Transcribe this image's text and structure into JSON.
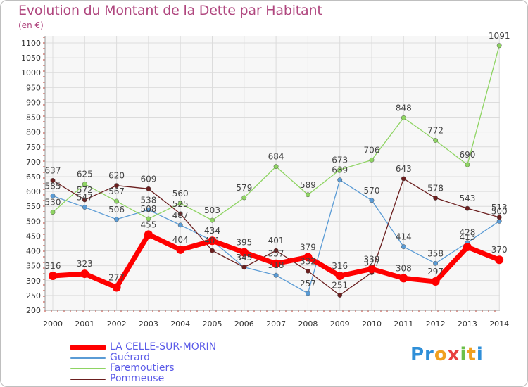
{
  "title": "Evolution du Montant de la Dette par Habitant",
  "subtitle": "(en €)",
  "logo_text": "Proxiti",
  "chart_data": {
    "type": "line",
    "title": "Evolution du Montant de la Dette par Habitant",
    "subtitle": "(en €)",
    "xlabel": "",
    "ylabel": "",
    "categories": [
      "2000",
      "2001",
      "2002",
      "2003",
      "2004",
      "2005",
      "2006",
      "2007",
      "2008",
      "2009",
      "2010",
      "2011",
      "2012",
      "2013",
      "2014"
    ],
    "ylim": [
      200,
      1100
    ],
    "yticks": [
      200,
      250,
      300,
      350,
      400,
      450,
      500,
      550,
      600,
      650,
      700,
      750,
      800,
      850,
      900,
      950,
      1000,
      1050,
      1100
    ],
    "grid": true,
    "legend_position": "bottom-left",
    "series": [
      {
        "name": "LA CELLE-SUR-MORIN",
        "color": "#ff0000",
        "values": [
          316,
          323,
          277,
          455,
          404,
          434,
          395,
          357,
          379,
          316,
          339,
          308,
          297,
          413,
          370
        ]
      },
      {
        "name": "Guérard",
        "color": "#5a9bd5",
        "values": [
          585,
          547,
          506,
          538,
          487,
          434,
          345,
          318,
          257,
          639,
          570,
          414,
          358,
          428,
          500
        ]
      },
      {
        "name": "Faremoutiers",
        "color": "#8ed462",
        "values": [
          530,
          625,
          567,
          508,
          560,
          503,
          579,
          684,
          589,
          673,
          706,
          848,
          772,
          690,
          1091
        ]
      },
      {
        "name": "Pommeuse",
        "color": "#6b1f1f",
        "values": [
          637,
          572,
          620,
          609,
          525,
          401,
          345,
          401,
          332,
          251,
          327,
          643,
          578,
          543,
          513
        ]
      }
    ]
  }
}
